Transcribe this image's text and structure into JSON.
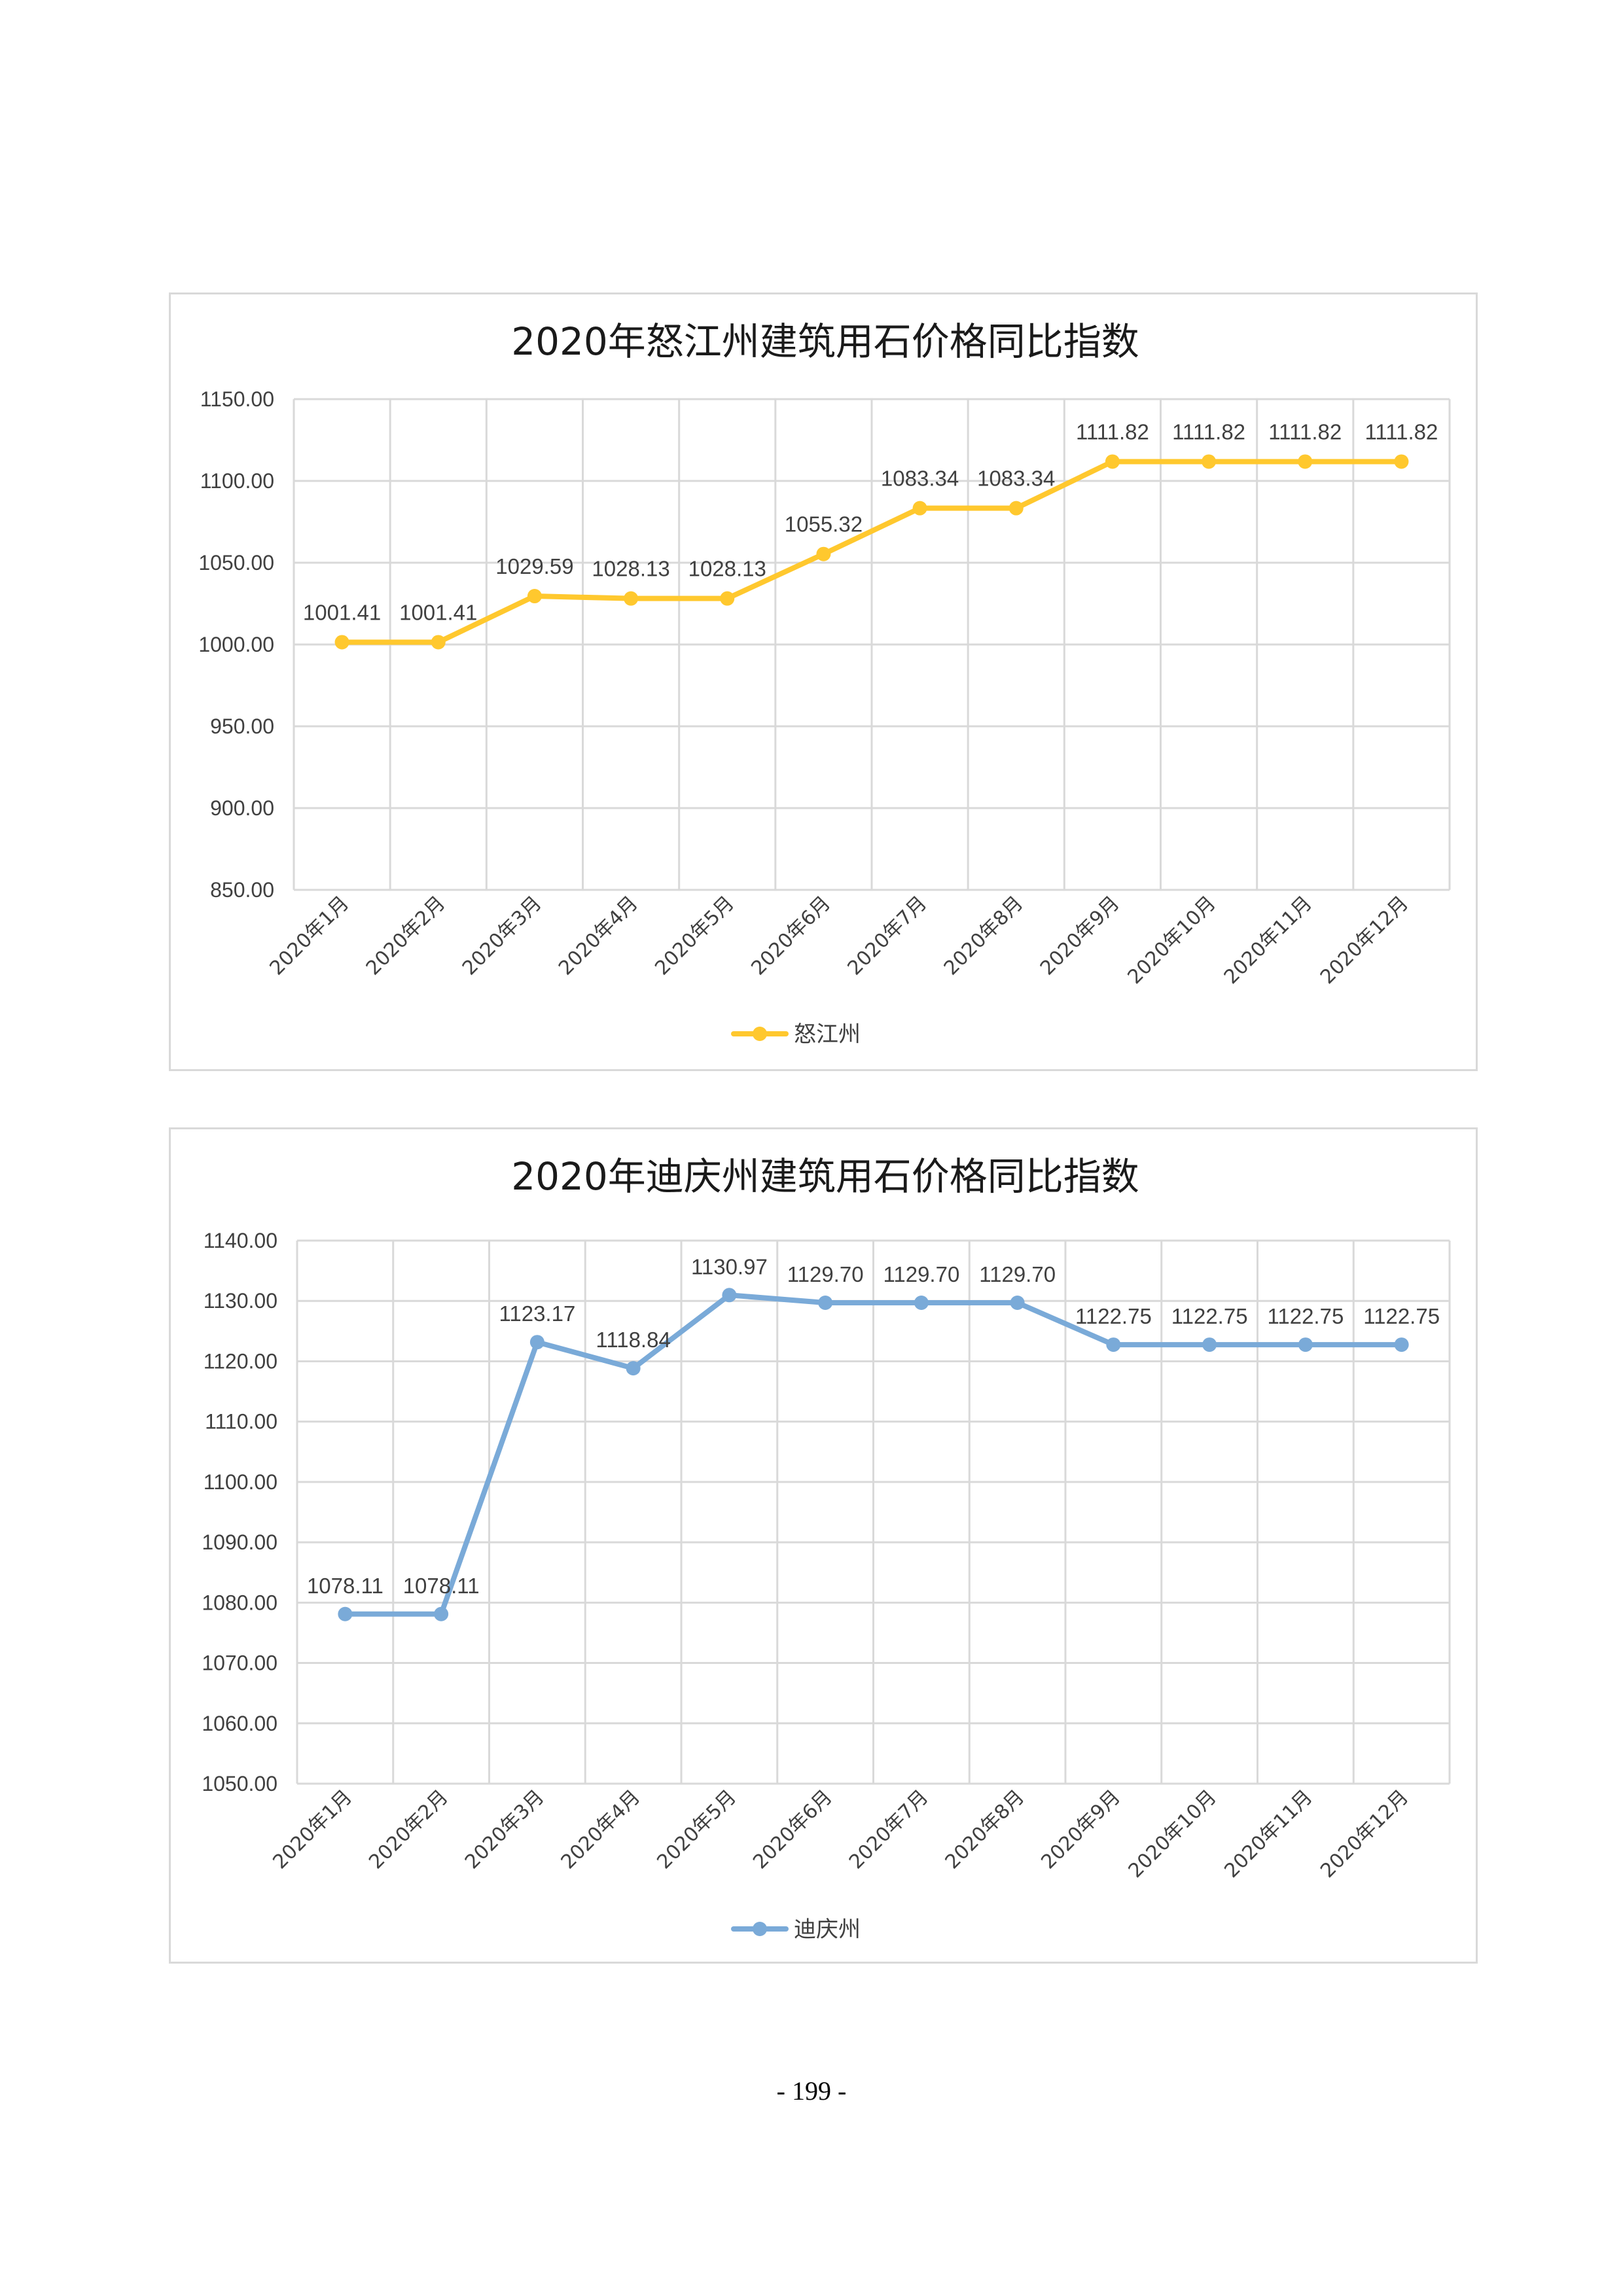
{
  "page": {
    "number": "- 199 -"
  },
  "chart_data": [
    {
      "type": "line",
      "title": "2020年怒江州建筑用石价格同比指数",
      "categories": [
        "2020年1月",
        "2020年2月",
        "2020年3月",
        "2020年4月",
        "2020年5月",
        "2020年6月",
        "2020年7月",
        "2020年8月",
        "2020年9月",
        "2020年10月",
        "2020年11月",
        "2020年12月"
      ],
      "series": [
        {
          "name": "怒江州",
          "color": "#FFC82E",
          "values": [
            1001.41,
            1001.41,
            1029.59,
            1028.13,
            1028.13,
            1055.32,
            1083.34,
            1083.34,
            1111.82,
            1111.82,
            1111.82,
            1111.82
          ]
        }
      ],
      "ylim": [
        850,
        1150
      ],
      "yticks": [
        "850.00",
        "900.00",
        "950.00",
        "1000.00",
        "1050.00",
        "1100.00",
        "1150.00"
      ],
      "grid": true,
      "legend": "bottom-center"
    },
    {
      "type": "line",
      "title": "2020年迪庆州建筑用石价格同比指数",
      "categories": [
        "2020年1月",
        "2020年2月",
        "2020年3月",
        "2020年4月",
        "2020年5月",
        "2020年6月",
        "2020年7月",
        "2020年8月",
        "2020年9月",
        "2020年10月",
        "2020年11月",
        "2020年12月"
      ],
      "series": [
        {
          "name": "迪庆州",
          "color": "#7AAAD8",
          "values": [
            1078.11,
            1078.11,
            1123.17,
            1118.84,
            1130.97,
            1129.7,
            1129.7,
            1129.7,
            1122.75,
            1122.75,
            1122.75,
            1122.75
          ]
        }
      ],
      "ylim": [
        1050,
        1140
      ],
      "yticks": [
        "1050.00",
        "1060.00",
        "1070.00",
        "1080.00",
        "1090.00",
        "1100.00",
        "1110.00",
        "1120.00",
        "1130.00",
        "1140.00"
      ],
      "grid": true,
      "legend": "bottom-center"
    }
  ]
}
